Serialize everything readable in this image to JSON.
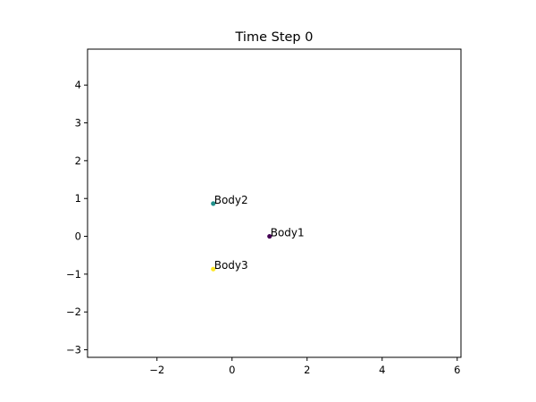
{
  "chart_data": {
    "type": "scatter",
    "title": "Time Step 0",
    "xlabel": "",
    "ylabel": "",
    "xlim": [
      -3.85,
      6.1
    ],
    "ylim": [
      -3.2,
      4.95
    ],
    "grid": false,
    "x_ticks": [
      -2,
      0,
      2,
      4,
      6
    ],
    "x_tick_labels": [
      "−2",
      "0",
      "2",
      "4",
      "6"
    ],
    "y_ticks": [
      -3,
      -2,
      -1,
      0,
      1,
      2,
      3,
      4
    ],
    "y_tick_labels": [
      "−3",
      "−2",
      "−1",
      "0",
      "1",
      "2",
      "3",
      "4"
    ],
    "points": [
      {
        "label": "Body1",
        "x": 1.0,
        "y": 0.0,
        "color": "#440154"
      },
      {
        "label": "Body2",
        "x": -0.5,
        "y": 0.866,
        "color": "#21918c"
      },
      {
        "label": "Body3",
        "x": -0.5,
        "y": -0.866,
        "color": "#fde725"
      }
    ]
  }
}
